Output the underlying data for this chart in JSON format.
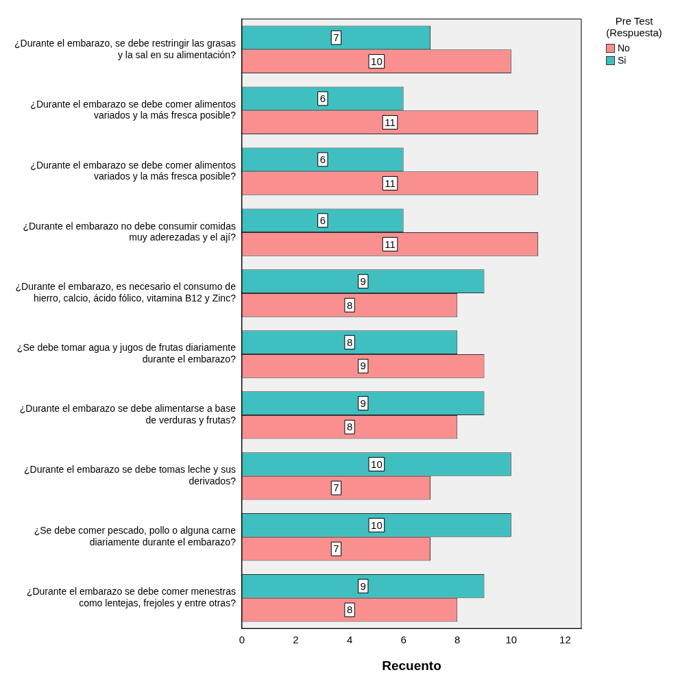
{
  "chart_data": {
    "type": "bar",
    "orientation": "horizontal",
    "xlabel": "Recuento",
    "legend_title": "Pre Test (Respuesta)",
    "legend": "top right",
    "grid": false,
    "data_labels": true,
    "categories": [
      "¿Durante el embarazo, se debe restringir las grasas y la sal en su alimentación?",
      "¿Durante el embarazo se debe comer alimentos variados y la más fresca posible?",
      "¿Durante el embarazo se debe comer alimentos variados y la más fresca posible?",
      "¿Durante el embarazo no debe consumir comidas muy aderezadas y el ají?",
      "¿Durante el embarazo, es necesario el consumo de hierro, calcio, ácido fólico, vitamina B12 y Zinc?",
      "¿Se debe tomar agua y jugos de frutas diariamente durante el embarazo?",
      "¿Durante el embarazo se debe alimentarse a base de verduras y frutas?",
      "¿Durante el embarazo se debe tomas leche y sus derivados?",
      "¿Se debe comer pescado, pollo o alguna carne diariamente durante el embarazo?",
      "¿Durante el embarazo se debe comer menestras como lentejas, frejoles y entre otras?"
    ],
    "series": [
      {
        "name": "Si",
        "color": "#3fbfbf",
        "values": [
          7,
          6,
          6,
          6,
          9,
          8,
          9,
          10,
          10,
          9
        ]
      },
      {
        "name": "No",
        "color": "#fa8f8f",
        "values": [
          10,
          11,
          11,
          11,
          8,
          9,
          8,
          7,
          7,
          8
        ]
      }
    ],
    "xlim": [
      0,
      12.6
    ],
    "xticks": [
      0,
      2,
      4,
      6,
      8,
      10,
      12
    ]
  }
}
